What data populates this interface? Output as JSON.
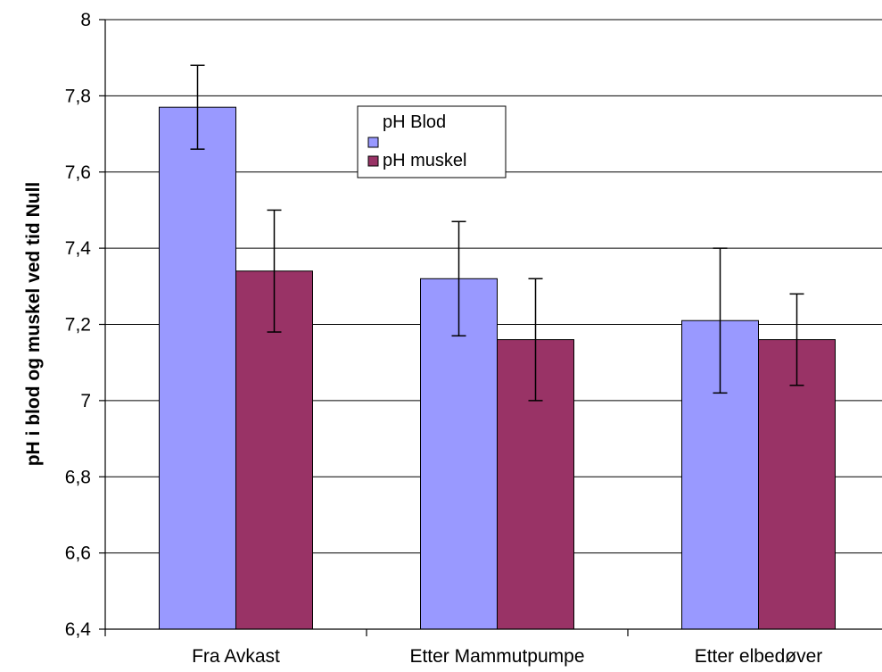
{
  "chart_data": {
    "type": "bar",
    "title": "",
    "xlabel": "",
    "ylabel": "pH i blod og muskel ved tid Null",
    "ylim": [
      6.4,
      8
    ],
    "yticks": [
      6.4,
      6.6,
      6.8,
      7,
      7.2,
      7.4,
      7.6,
      7.8,
      8
    ],
    "ytick_labels": [
      "6,4",
      "6,6",
      "6,8",
      "7",
      "7,2",
      "7,4",
      "7,6",
      "7,8",
      "8"
    ],
    "categories": [
      "Fra Avkast",
      "Etter Mammutpumpe",
      "Etter elbedøver"
    ],
    "grid": true,
    "legend_position": "top-center",
    "series": [
      {
        "name": "pH Blod",
        "color": "#9999ff",
        "values": [
          7.77,
          7.32,
          7.21
        ],
        "error_low": [
          7.66,
          7.17,
          7.02
        ],
        "error_high": [
          7.88,
          7.47,
          7.4
        ]
      },
      {
        "name": "pH muskel",
        "color": "#993366",
        "values": [
          7.34,
          7.16,
          7.16
        ],
        "error_low": [
          7.18,
          7.0,
          7.04
        ],
        "error_high": [
          7.5,
          7.32,
          7.28
        ]
      }
    ]
  }
}
